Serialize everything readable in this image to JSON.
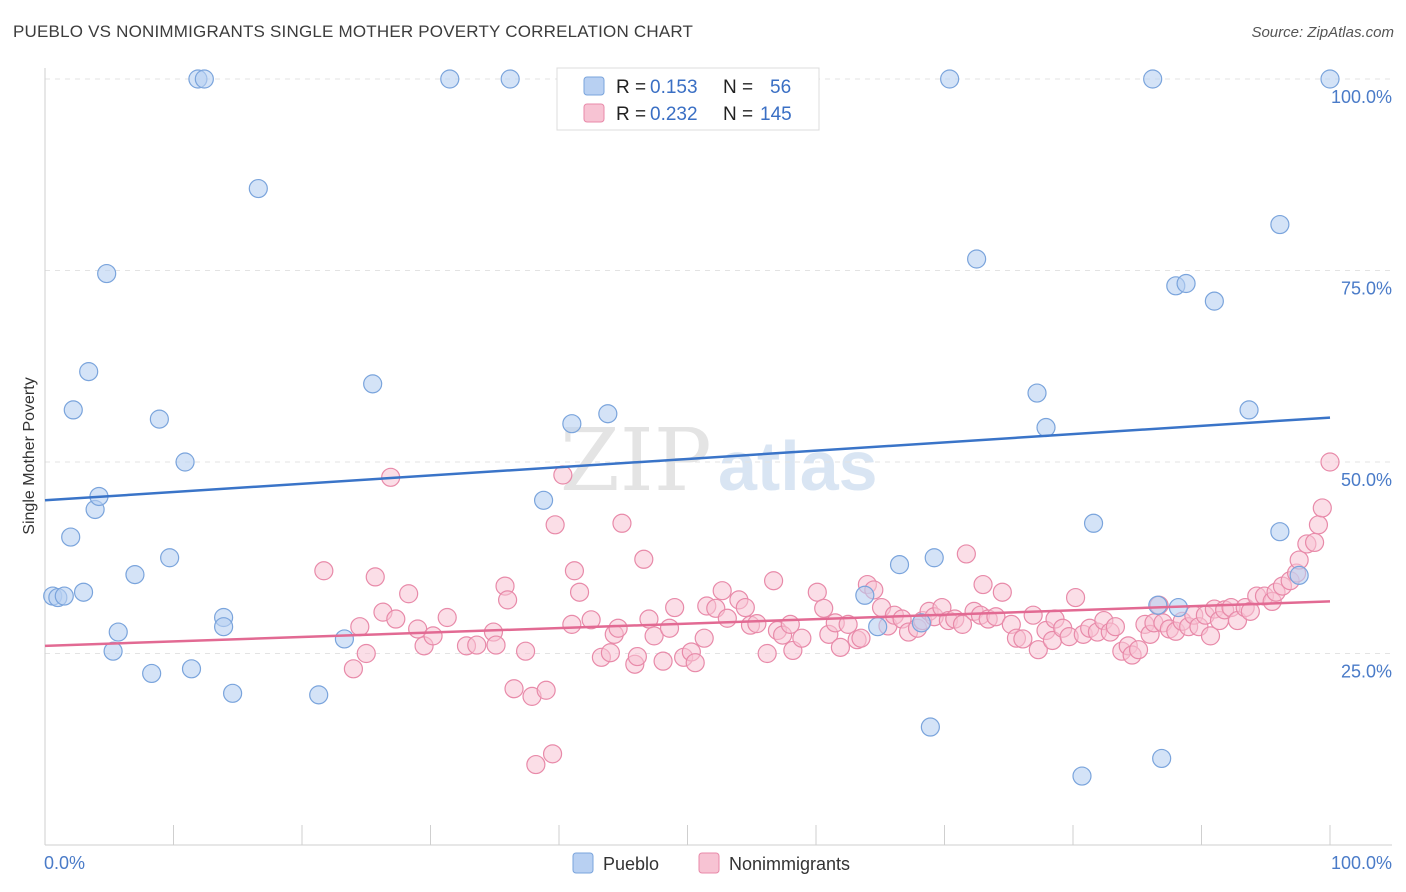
{
  "header": {
    "title": "PUEBLO VS NONIMMIGRANTS SINGLE MOTHER POVERTY CORRELATION CHART",
    "source": "Source: ZipAtlas.com"
  },
  "watermark": {
    "zip": "ZIP",
    "atlas": "atlas"
  },
  "legend": {
    "rows": [
      {
        "r_label": "R =",
        "r_value": "0.153",
        "n_label": "N =",
        "n_value": "56"
      },
      {
        "r_label": "R =",
        "r_value": "0.232",
        "n_label": "N =",
        "n_value": "145"
      }
    ]
  },
  "bottom_legend": {
    "items": [
      "Pueblo",
      "Nonimmigrants"
    ]
  },
  "chart_data": {
    "type": "scatter",
    "xlabel": "",
    "ylabel": "Single Mother Poverty",
    "xlim": [
      0,
      100
    ],
    "ylim": [
      0,
      100
    ],
    "x_tick_labels": [
      "0.0%",
      "100.0%"
    ],
    "y_tick_labels": [
      "25.0%",
      "50.0%",
      "75.0%",
      "100.0%"
    ],
    "y_ticks": [
      25,
      50,
      75,
      100
    ],
    "grid": true,
    "legend_position": "top-center",
    "colors": {
      "pueblo_fill": "#b8d0f2",
      "pueblo_stroke": "#7aa4dc",
      "pueblo_line": "#3a74c8",
      "nonimm_fill": "#f7c3d3",
      "nonimm_stroke": "#e88aa9",
      "nonimm_line": "#e26a93"
    },
    "series": [
      {
        "name": "Pueblo",
        "trend": {
          "x": [
            0,
            100
          ],
          "y": [
            45.0,
            55.8
          ]
        },
        "points": [
          [
            0.6,
            32.5
          ],
          [
            1.0,
            32.3
          ],
          [
            1.5,
            32.5
          ],
          [
            2.0,
            40.2
          ],
          [
            2.2,
            56.8
          ],
          [
            3.0,
            33.0
          ],
          [
            3.4,
            61.8
          ],
          [
            3.9,
            43.8
          ],
          [
            4.2,
            45.5
          ],
          [
            4.8,
            74.6
          ],
          [
            5.3,
            25.3
          ],
          [
            5.7,
            27.8
          ],
          [
            7.0,
            35.3
          ],
          [
            8.3,
            22.4
          ],
          [
            8.9,
            55.6
          ],
          [
            9.7,
            37.5
          ],
          [
            10.9,
            50.0
          ],
          [
            11.4,
            23.0
          ],
          [
            11.9,
            100.0
          ],
          [
            12.4,
            100.0
          ],
          [
            13.9,
            29.7
          ],
          [
            13.9,
            28.5
          ],
          [
            14.6,
            19.8
          ],
          [
            16.6,
            85.7
          ],
          [
            21.3,
            19.6
          ],
          [
            23.3,
            26.9
          ],
          [
            25.5,
            60.2
          ],
          [
            31.5,
            100.0
          ],
          [
            36.2,
            100.0
          ],
          [
            38.8,
            45.0
          ],
          [
            41.0,
            55.0
          ],
          [
            43.8,
            56.3
          ],
          [
            63.8,
            32.6
          ],
          [
            64.8,
            28.5
          ],
          [
            66.5,
            36.6
          ],
          [
            68.2,
            29.0
          ],
          [
            68.9,
            15.4
          ],
          [
            69.2,
            37.5
          ],
          [
            70.4,
            100.0
          ],
          [
            72.5,
            76.5
          ],
          [
            77.2,
            59.0
          ],
          [
            77.9,
            54.5
          ],
          [
            80.7,
            9.0
          ],
          [
            81.6,
            42.0
          ],
          [
            86.2,
            100.0
          ],
          [
            86.6,
            31.3
          ],
          [
            86.9,
            11.3
          ],
          [
            88.0,
            73.0
          ],
          [
            88.2,
            31.0
          ],
          [
            88.8,
            73.3
          ],
          [
            91.0,
            71.0
          ],
          [
            93.7,
            56.8
          ],
          [
            96.1,
            40.9
          ],
          [
            96.1,
            81.0
          ],
          [
            97.6,
            35.2
          ],
          [
            100.0,
            100.0
          ]
        ]
      },
      {
        "name": "Nonimmigrants",
        "trend": {
          "x": [
            0,
            100
          ],
          "y": [
            26.0,
            31.8
          ]
        },
        "points": [
          [
            21.7,
            35.8
          ],
          [
            24.0,
            23.0
          ],
          [
            24.5,
            28.5
          ],
          [
            25.0,
            25.0
          ],
          [
            25.7,
            35.0
          ],
          [
            26.3,
            30.4
          ],
          [
            26.9,
            48.0
          ],
          [
            27.3,
            29.5
          ],
          [
            28.3,
            32.8
          ],
          [
            29.0,
            28.2
          ],
          [
            29.5,
            26.0
          ],
          [
            30.2,
            27.3
          ],
          [
            31.3,
            29.7
          ],
          [
            32.8,
            26.0
          ],
          [
            33.6,
            26.1
          ],
          [
            34.9,
            27.8
          ],
          [
            35.1,
            26.1
          ],
          [
            35.8,
            33.8
          ],
          [
            36.0,
            32.0
          ],
          [
            36.5,
            20.4
          ],
          [
            37.4,
            25.3
          ],
          [
            37.9,
            19.4
          ],
          [
            38.2,
            10.5
          ],
          [
            39.0,
            20.2
          ],
          [
            39.5,
            11.9
          ],
          [
            39.7,
            41.8
          ],
          [
            40.3,
            48.3
          ],
          [
            41.0,
            28.8
          ],
          [
            41.2,
            35.8
          ],
          [
            41.6,
            33.0
          ],
          [
            42.5,
            29.4
          ],
          [
            43.3,
            24.5
          ],
          [
            44.0,
            25.1
          ],
          [
            44.3,
            27.5
          ],
          [
            44.6,
            28.3
          ],
          [
            44.9,
            42.0
          ],
          [
            45.9,
            23.6
          ],
          [
            46.1,
            24.6
          ],
          [
            46.6,
            37.3
          ],
          [
            47.0,
            29.5
          ],
          [
            47.4,
            27.3
          ],
          [
            48.1,
            24.0
          ],
          [
            48.6,
            28.3
          ],
          [
            49.0,
            31.0
          ],
          [
            49.7,
            24.5
          ],
          [
            50.3,
            25.2
          ],
          [
            50.6,
            23.8
          ],
          [
            51.3,
            27.0
          ],
          [
            51.5,
            31.2
          ],
          [
            52.2,
            30.9
          ],
          [
            52.7,
            33.2
          ],
          [
            53.1,
            29.6
          ],
          [
            54.0,
            32.0
          ],
          [
            54.5,
            31.0
          ],
          [
            54.9,
            28.7
          ],
          [
            55.4,
            28.9
          ],
          [
            56.2,
            25.0
          ],
          [
            56.7,
            34.5
          ],
          [
            57.0,
            28.0
          ],
          [
            57.4,
            27.4
          ],
          [
            58.0,
            28.8
          ],
          [
            58.2,
            25.4
          ],
          [
            58.9,
            27.0
          ],
          [
            60.1,
            33.0
          ],
          [
            60.6,
            30.9
          ],
          [
            61.0,
            27.5
          ],
          [
            61.5,
            29.0
          ],
          [
            61.9,
            25.8
          ],
          [
            62.5,
            28.8
          ],
          [
            63.2,
            26.8
          ],
          [
            63.5,
            27.0
          ],
          [
            64.0,
            34.0
          ],
          [
            64.5,
            33.3
          ],
          [
            65.1,
            31.0
          ],
          [
            65.6,
            28.6
          ],
          [
            66.1,
            30.0
          ],
          [
            66.7,
            29.5
          ],
          [
            67.2,
            27.8
          ],
          [
            67.9,
            28.3
          ],
          [
            68.3,
            29.3
          ],
          [
            68.8,
            30.5
          ],
          [
            69.2,
            29.8
          ],
          [
            69.8,
            31.0
          ],
          [
            70.3,
            29.3
          ],
          [
            70.8,
            29.5
          ],
          [
            71.4,
            28.8
          ],
          [
            71.7,
            38.0
          ],
          [
            72.3,
            30.5
          ],
          [
            72.8,
            30.0
          ],
          [
            73.0,
            34.0
          ],
          [
            73.4,
            29.5
          ],
          [
            74.0,
            29.8
          ],
          [
            74.5,
            33.0
          ],
          [
            75.2,
            28.8
          ],
          [
            75.6,
            27.0
          ],
          [
            76.1,
            26.9
          ],
          [
            76.9,
            30.0
          ],
          [
            77.3,
            25.5
          ],
          [
            77.9,
            28.0
          ],
          [
            78.4,
            26.7
          ],
          [
            78.6,
            29.5
          ],
          [
            79.2,
            28.3
          ],
          [
            79.7,
            27.2
          ],
          [
            80.2,
            32.3
          ],
          [
            80.8,
            27.5
          ],
          [
            81.3,
            28.3
          ],
          [
            81.9,
            27.8
          ],
          [
            82.4,
            29.3
          ],
          [
            82.9,
            27.8
          ],
          [
            83.3,
            28.5
          ],
          [
            83.8,
            25.3
          ],
          [
            84.3,
            26.0
          ],
          [
            84.6,
            24.8
          ],
          [
            85.1,
            25.5
          ],
          [
            85.6,
            28.8
          ],
          [
            86.0,
            27.5
          ],
          [
            86.3,
            29.0
          ],
          [
            86.7,
            31.3
          ],
          [
            87.0,
            29.0
          ],
          [
            87.5,
            28.2
          ],
          [
            88.0,
            27.9
          ],
          [
            88.5,
            29.2
          ],
          [
            89.0,
            28.5
          ],
          [
            89.4,
            30.0
          ],
          [
            89.8,
            28.5
          ],
          [
            90.3,
            30.0
          ],
          [
            90.7,
            27.3
          ],
          [
            91.0,
            30.8
          ],
          [
            91.4,
            29.3
          ],
          [
            91.8,
            30.7
          ],
          [
            92.3,
            31.0
          ],
          [
            92.8,
            29.3
          ],
          [
            93.4,
            31.0
          ],
          [
            93.8,
            30.5
          ],
          [
            94.3,
            32.5
          ],
          [
            94.9,
            32.5
          ],
          [
            95.5,
            31.8
          ],
          [
            95.8,
            33.0
          ],
          [
            96.3,
            33.8
          ],
          [
            96.9,
            34.5
          ],
          [
            97.4,
            35.5
          ],
          [
            97.6,
            37.2
          ],
          [
            98.2,
            39.3
          ],
          [
            98.8,
            39.5
          ],
          [
            99.1,
            41.8
          ],
          [
            99.4,
            44.0
          ],
          [
            100.0,
            50.0
          ]
        ]
      }
    ]
  }
}
